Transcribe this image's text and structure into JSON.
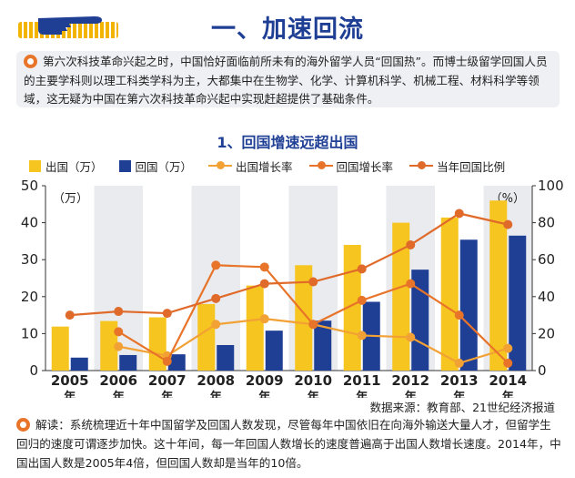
{
  "page_title": "一、加速回流",
  "intro_text": "第六次科技革命兴起之时，中国恰好面临前所未有的海外留学人员“回国热”。而博士级留学回国人员的主要学科则以理工科类学科为主，大都集中在生物学、化学、计算机科学、机械工程、材料科学等领域，这无疑为中国在第六次科技革命兴起中实现赶超提供了基础条件。",
  "chart_title": "1、回国增速远超出国",
  "colors": {
    "outbound": "#f7c51f",
    "returnees": "#1f3f95",
    "outbound_rate": "#f2a135",
    "return_rate": "#e8742a",
    "ratio": "#e06a2a",
    "title": "#1f3f95"
  },
  "chart_data": {
    "type": "bar",
    "title": "1、回国增速远超出国",
    "categories": [
      "2005",
      "2006",
      "2007",
      "2008",
      "2009",
      "2010",
      "2011",
      "2012",
      "2013",
      "2014"
    ],
    "category_suffix": "年",
    "series": [
      {
        "name": "出国（万）",
        "kind": "bar",
        "axis": "left",
        "values": [
          11.9,
          13.4,
          14.4,
          18.0,
          23.0,
          28.5,
          34.0,
          40.0,
          41.4,
          46.0
        ]
      },
      {
        "name": "回国（万）",
        "kind": "bar",
        "axis": "left",
        "values": [
          3.5,
          4.2,
          4.4,
          6.9,
          10.8,
          13.5,
          18.6,
          27.3,
          35.4,
          36.5
        ]
      },
      {
        "name": "出国增长率",
        "kind": "line",
        "axis": "right",
        "values": [
          null,
          13,
          8,
          25,
          28,
          25,
          19,
          18,
          4,
          12
        ]
      },
      {
        "name": "回国增长率",
        "kind": "line",
        "axis": "right",
        "values": [
          null,
          21,
          5,
          57,
          56,
          25,
          38,
          47,
          30,
          4
        ]
      },
      {
        "name": "当年回国比例",
        "kind": "line",
        "axis": "right",
        "values": [
          30,
          32,
          31,
          39,
          47,
          48,
          55,
          68,
          85,
          79
        ]
      }
    ],
    "ylabel_left": "（万）",
    "ylabel_right": "（%）",
    "ylim_left": [
      0,
      50
    ],
    "ylim_right": [
      0,
      100
    ],
    "yticks_left": [
      "0",
      "10",
      "20",
      "30",
      "40",
      "50"
    ],
    "yticks_right": [
      "0",
      "20",
      "40",
      "60",
      "80",
      "100"
    ],
    "grid": false,
    "legend_position": "top"
  },
  "legend": {
    "outbound": "出国（万）",
    "returnees": "回国（万）",
    "outbound_rate": "出国增长率",
    "return_rate": "回国增长率",
    "ratio": "当年回国比例"
  },
  "source_text": "数据来源：教育部、21世纪经济报道",
  "note_text": "解读：系统梳理近十年中国留学及回国人数发现，尽管每年中国依旧在向海外输送大量人才，但留学生回归的速度可谓逐步加快。这十年间，每一年回国人数增长的速度普遍高于出国人数增长速度。2014年，中国出国人数是2005年4倍，但回国人数却是当年的10倍。"
}
